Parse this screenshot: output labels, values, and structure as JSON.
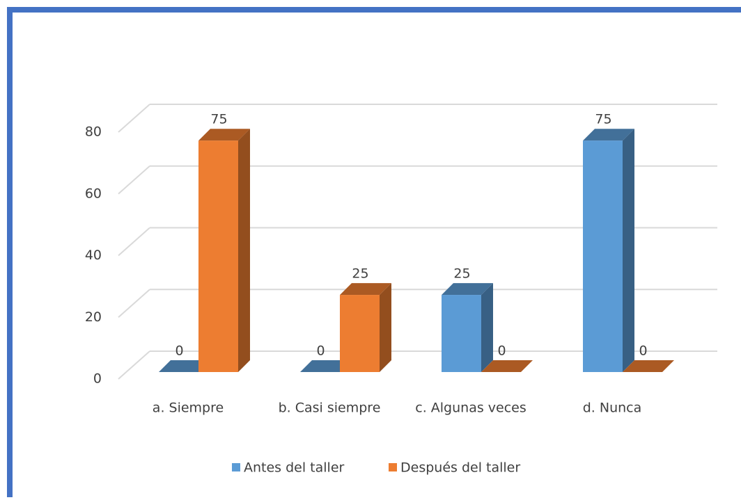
{
  "chart_data": {
    "type": "bar3d",
    "categories": [
      "a. Siempre",
      "b. Casi siempre",
      "c. Algunas veces",
      "d. Nunca"
    ],
    "series": [
      {
        "name": "Antes del taller",
        "color": "#5b9bd5",
        "values": [
          0,
          0,
          25,
          75
        ]
      },
      {
        "name": "Después del taller",
        "color": "#ed7d31",
        "values": [
          75,
          25,
          0,
          0
        ]
      }
    ],
    "ylim": [
      0,
      80
    ],
    "yticks": [
      0,
      20,
      40,
      60,
      80
    ],
    "grid": true,
    "legend": "bottom"
  }
}
